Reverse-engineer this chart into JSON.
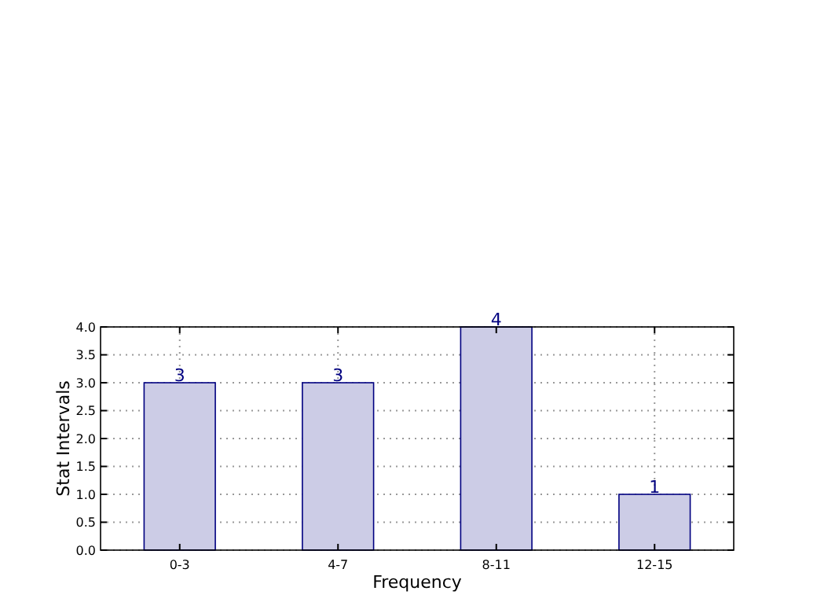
{
  "chart_data": {
    "type": "bar",
    "xlabel": "Frequency",
    "ylabel": "Stat Intervals",
    "categories": [
      "0-3",
      "4-7",
      "8-11",
      "12-15"
    ],
    "values": [
      3,
      3,
      4,
      1
    ],
    "color": "#cccce6",
    "ylim": [
      0,
      4
    ],
    "yticks": [
      {
        "value": 0,
        "label": "0.0"
      },
      {
        "value": 0.5,
        "label": "0.5"
      },
      {
        "value": 1,
        "label": "1.0"
      },
      {
        "value": 1.5,
        "label": "1.5"
      },
      {
        "value": 2,
        "label": "2.0"
      },
      {
        "value": 2.5,
        "label": "2.5"
      },
      {
        "value": 3,
        "label": "3.0"
      },
      {
        "value": 3.5,
        "label": "3.5"
      },
      {
        "value": 4,
        "label": "4.0"
      }
    ],
    "grid": true,
    "data_labels": true
  }
}
